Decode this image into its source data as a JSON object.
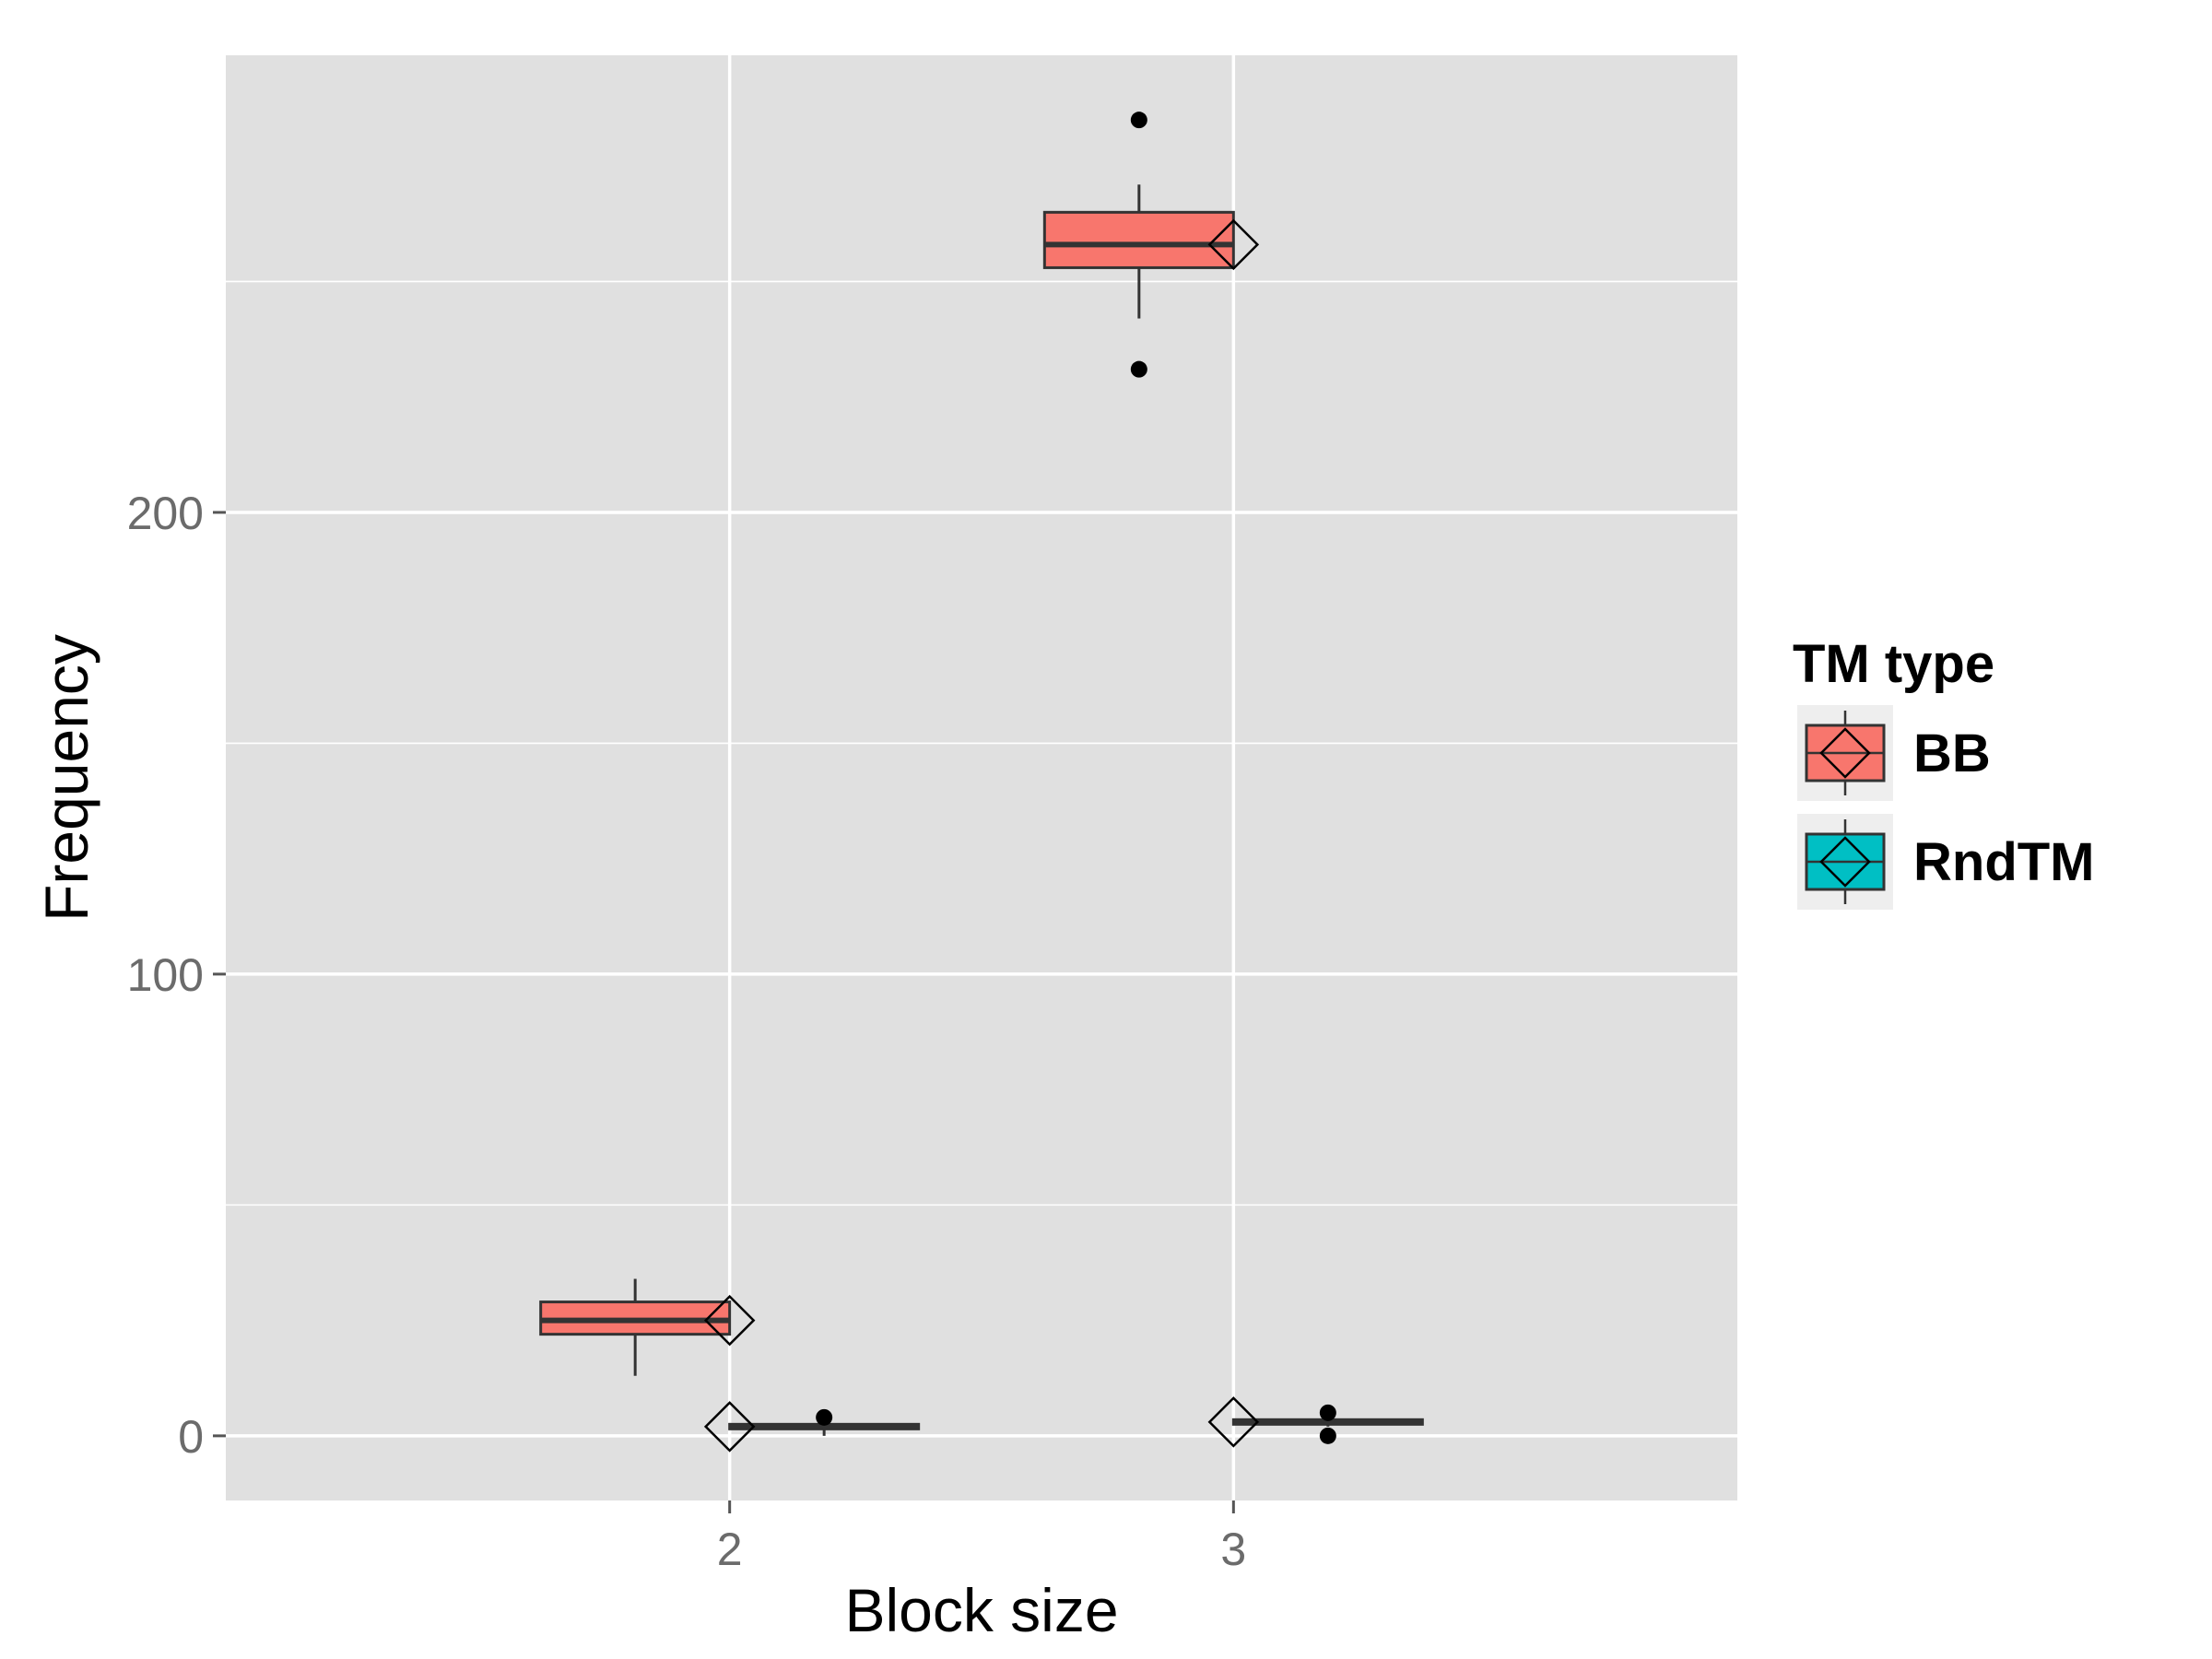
{
  "chart_data": {
    "type": "boxplot",
    "xlabel": "Block size",
    "ylabel": "Frequency",
    "categories": [
      "2",
      "3"
    ],
    "ylim": [
      -14,
      299
    ],
    "yticks": [
      0,
      100,
      200
    ],
    "ytick_labels": [
      "0",
      "100",
      "200"
    ],
    "grid": true,
    "legend": {
      "title": "TM type",
      "position": "right",
      "entries": [
        "BB",
        "RndTM"
      ]
    },
    "series": [
      {
        "name": "BB",
        "color": "#f8766d",
        "boxes": [
          {
            "category": "2",
            "whisker_low": 13,
            "q1": 22,
            "median": 25,
            "q3": 29,
            "whisker_high": 34,
            "outliers": [],
            "mean": 25
          },
          {
            "category": "3",
            "whisker_low": 242,
            "q1": 253,
            "median": 258,
            "q3": 265,
            "whisker_high": 271,
            "outliers": [
              231,
              285
            ],
            "mean": 258
          }
        ]
      },
      {
        "name": "RndTM",
        "color": "#00bfc4",
        "boxes": [
          {
            "category": "2",
            "whisker_low": 0,
            "q1": 1.5,
            "median": 2,
            "q3": 2.5,
            "whisker_high": 3,
            "outliers": [
              4
            ],
            "mean": 2
          },
          {
            "category": "3",
            "whisker_low": 2,
            "q1": 2.5,
            "median": 3,
            "q3": 3.5,
            "whisker_high": 4,
            "outliers": [
              0,
              5
            ],
            "mean": 3
          }
        ]
      }
    ]
  }
}
